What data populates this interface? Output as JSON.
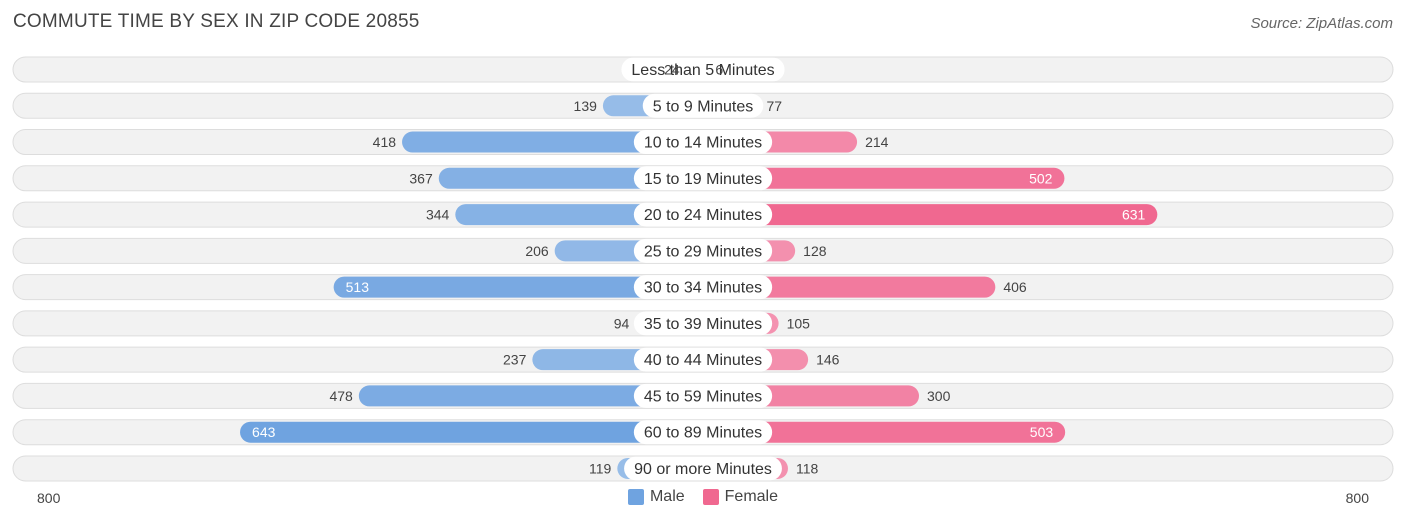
{
  "title": "COMMUTE TIME BY SEX IN ZIP CODE 20855",
  "source": "Source: ZipAtlas.com",
  "axis": {
    "left_label": "800",
    "right_label": "800"
  },
  "legend": [
    {
      "name": "Male",
      "color": "#6fa3e0"
    },
    {
      "name": "Female",
      "color": "#f06890"
    }
  ],
  "colors": {
    "male_dark": "#6fa3e0",
    "male_light": "#a9c8ec",
    "female_dark": "#f06890",
    "female_light": "#f5a3bd",
    "row_bg": "#f2f2f2",
    "row_border": "#dddddd"
  },
  "chart_data": {
    "type": "bar",
    "orientation": "horizontal-diverging",
    "title": "COMMUTE TIME BY SEX IN ZIP CODE 20855",
    "xlim": [
      -800,
      800
    ],
    "categories": [
      "Less than 5 Minutes",
      "5 to 9 Minutes",
      "10 to 14 Minutes",
      "15 to 19 Minutes",
      "20 to 24 Minutes",
      "25 to 29 Minutes",
      "30 to 34 Minutes",
      "35 to 39 Minutes",
      "40 to 44 Minutes",
      "45 to 59 Minutes",
      "60 to 89 Minutes",
      "90 or more Minutes"
    ],
    "series": [
      {
        "name": "Male",
        "values": [
          24,
          139,
          418,
          367,
          344,
          206,
          513,
          94,
          237,
          478,
          643,
          119
        ]
      },
      {
        "name": "Female",
        "values": [
          6,
          77,
          214,
          502,
          631,
          128,
          406,
          105,
          146,
          300,
          503,
          118
        ]
      }
    ],
    "legend_position": "bottom"
  }
}
